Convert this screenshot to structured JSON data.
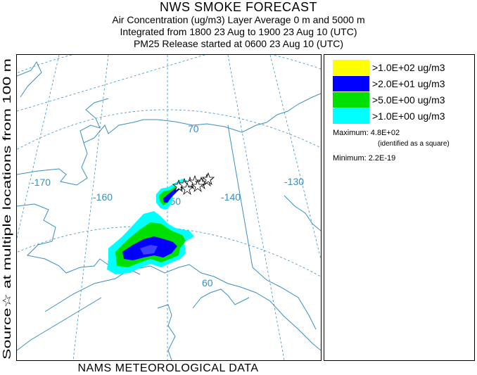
{
  "header": {
    "title": "NWS SMOKE FORECAST",
    "line2": "Air Concentration (ug/m3) Layer Average    0 m and  5000 m",
    "line3": "Integrated from 1800 23 Aug to 1900 23 Aug 10 (UTC)",
    "line4": "PM25 Release started at 0600 23 Aug 10 (UTC)"
  },
  "side_label": "Source☆ at multiple locations from 100 m",
  "footer": "NAMS METEOROLOGICAL DATA",
  "legend": {
    "items": [
      {
        "label": ">1.0E+02 ug/m3",
        "color": "#ffff00"
      },
      {
        "label": ">2.0E+01 ug/m3",
        "color": "#0000ff"
      },
      {
        "label": ">5.0E+00 ug/m3",
        "color": "#00e000"
      },
      {
        "label": ">1.0E+00 ug/m3",
        "color": "#00ffff"
      }
    ],
    "maximum_label": "Maximum:",
    "maximum_value": "4.8E+02",
    "maximum_note": "(identified as a square)",
    "minimum_label": "Minimum:",
    "minimum_value": "2.2E-19"
  },
  "map": {
    "graticule_labels": {
      "lon_170": "-170",
      "lon_160": "-160",
      "lon_150": "-150",
      "lon_140": "-140",
      "lon_130": "-130",
      "lat_70": "70",
      "lat_60": "60"
    },
    "colors": {
      "coast": "#3a8fc0",
      "grid": "#3a8fc0"
    }
  }
}
